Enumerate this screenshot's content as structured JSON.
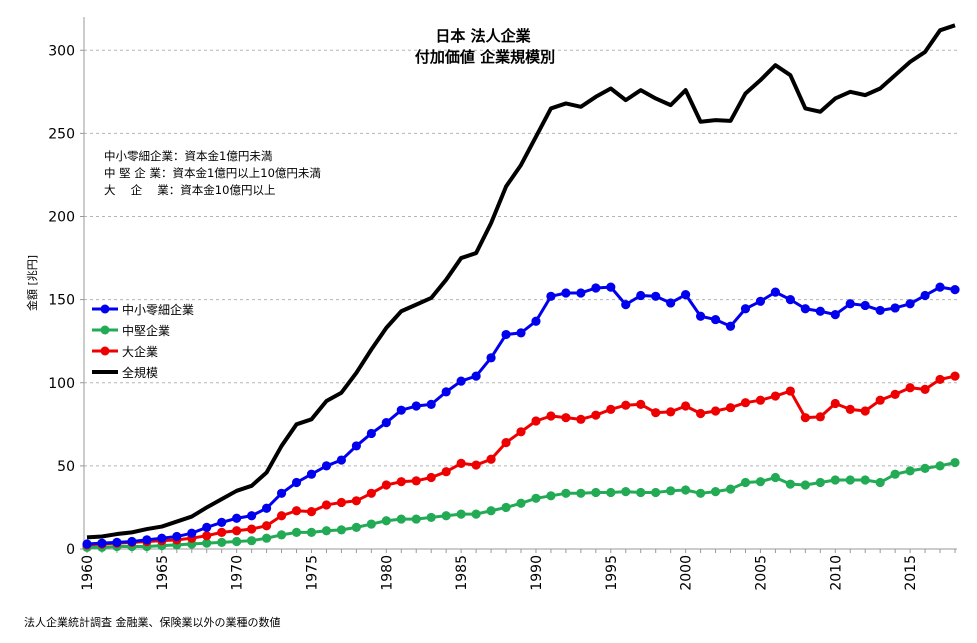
{
  "chart_data": {
    "type": "line",
    "title_line1": "日本 法人企業",
    "title_line2": "付加価値 企業規模別",
    "ylabel": "金額 [兆円]",
    "xlabel": "",
    "footnote": "法人企業統計調査 金融業、保険業以外の業種の数値",
    "definitions": [
      "中小零細企業：資本金1億円未満",
      "中 堅 企 業：資本金1億円以上10億円未満",
      "大 　企 　業：資本金10億円以上"
    ],
    "xlim": [
      1960,
      2018
    ],
    "ylim": [
      0,
      320
    ],
    "x_ticks": [
      "1960",
      "1965",
      "1970",
      "1975",
      "1980",
      "1985",
      "1990",
      "1995",
      "2000",
      "2005",
      "2010",
      "2015"
    ],
    "y_ticks": [
      "0",
      "50",
      "100",
      "150",
      "200",
      "250",
      "300"
    ],
    "grid": "horizontal-dashed",
    "legend_position": "left-middle",
    "x": [
      1960,
      1961,
      1962,
      1963,
      1964,
      1965,
      1966,
      1967,
      1968,
      1969,
      1970,
      1971,
      1972,
      1973,
      1974,
      1975,
      1976,
      1977,
      1978,
      1979,
      1980,
      1981,
      1982,
      1983,
      1984,
      1985,
      1986,
      1987,
      1988,
      1989,
      1990,
      1991,
      1992,
      1993,
      1994,
      1995,
      1996,
      1997,
      1998,
      1999,
      2000,
      2001,
      2002,
      2003,
      2004,
      2005,
      2006,
      2007,
      2008,
      2009,
      2010,
      2011,
      2012,
      2013,
      2014,
      2015,
      2016,
      2017,
      2018
    ],
    "series": [
      {
        "name": "中小零細企業",
        "color": "#0000ee",
        "markers": true,
        "values": [
          3,
          3.5,
          4,
          4.5,
          5.5,
          6.5,
          7.5,
          9.5,
          13,
          16,
          18.5,
          20,
          24.5,
          33.5,
          40,
          45,
          50,
          53.5,
          62,
          69.5,
          76,
          83.5,
          86,
          87,
          94.5,
          101,
          104,
          115,
          129,
          130,
          137,
          152,
          154,
          154,
          157,
          157.5,
          147,
          152.5,
          152,
          148,
          153,
          140,
          138,
          134,
          144.5,
          149,
          154.5,
          150,
          144.5,
          143,
          141,
          147.5,
          146.5,
          143.5,
          145,
          147.5,
          152.5,
          157.5,
          156
        ]
      },
      {
        "name": "中堅企業",
        "color": "#22aa55",
        "markers": true,
        "values": [
          1,
          1,
          1.5,
          1.5,
          1.5,
          2,
          2.5,
          3,
          3.5,
          4,
          4.5,
          5,
          6.5,
          8.5,
          10,
          10,
          11,
          11.5,
          13,
          15,
          17,
          18,
          18,
          19,
          20,
          21,
          21,
          23,
          25,
          27.5,
          30.5,
          32,
          33.5,
          33.5,
          34,
          34,
          34.5,
          34,
          34,
          35,
          35.5,
          33.5,
          34.5,
          36,
          40,
          40.5,
          43,
          39,
          38.5,
          40,
          41.5,
          41.5,
          41.5,
          40,
          45,
          47,
          48.5,
          50,
          52
        ]
      },
      {
        "name": "大企業",
        "color": "#ee0000",
        "markers": true,
        "values": [
          2.5,
          3,
          3.5,
          4,
          4.5,
          5,
          5.5,
          6.5,
          8,
          10,
          11,
          12,
          14,
          20,
          23,
          22.5,
          26.5,
          28,
          29,
          33.5,
          38.5,
          40.5,
          41,
          43,
          46.5,
          51.5,
          50.5,
          54,
          64,
          70.5,
          77,
          80,
          79,
          78,
          80.5,
          84,
          86.5,
          87,
          82,
          82.5,
          86,
          81.5,
          83,
          85,
          88,
          89.5,
          92,
          95,
          79,
          79.5,
          87.5,
          84,
          83,
          89.5,
          93,
          97,
          96,
          102,
          104
        ]
      },
      {
        "name": "全規模",
        "color": "#000000",
        "markers": false,
        "values": [
          7,
          7.5,
          9,
          10,
          12,
          13.5,
          16.5,
          19.5,
          25,
          30,
          35,
          38,
          46,
          62,
          75,
          78,
          89,
          94,
          106,
          120,
          133,
          143,
          147,
          151,
          162,
          175,
          178,
          196,
          218,
          231,
          248,
          265,
          268,
          266,
          272,
          277,
          270,
          276,
          271,
          267,
          276,
          257,
          258,
          257.5,
          274,
          282,
          291,
          285,
          265,
          263,
          271,
          275,
          273,
          277,
          285,
          293,
          299,
          312,
          315
        ]
      }
    ]
  }
}
